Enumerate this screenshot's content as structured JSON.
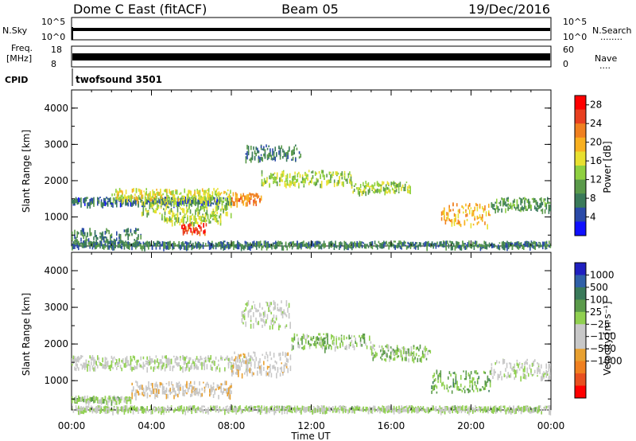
{
  "header": {
    "station": "Dome C East (fitACF)",
    "beam": "Beam 05",
    "date": "19/Dec/2016"
  },
  "panels": {
    "sky": {
      "left_label": "N.Sky",
      "right_label": "N.Search",
      "right_dots": "........",
      "left_ticks": [
        "10^5",
        "10^0"
      ],
      "right_ticks": [
        "10^5",
        "10^0"
      ]
    },
    "freq": {
      "left_label_1": "Freq.",
      "left_label_2": "[MHz]",
      "right_label": "Nave",
      "right_dots": "....",
      "left_ticks": [
        "18",
        "8"
      ],
      "right_ticks": [
        "60",
        "0"
      ]
    },
    "cpid": {
      "label": "CPID",
      "program": "twofsound 3501"
    }
  },
  "colors": {
    "power_scale": [
      "#1010ff",
      "#2a4aa8",
      "#3a7a5a",
      "#5a9a4a",
      "#8fd040",
      "#e8e030",
      "#f8b020",
      "#f08020",
      "#e84020",
      "#ff0000"
    ],
    "velocity_scale": [
      "#2020c0",
      "#3060a8",
      "#3a7a5a",
      "#5a9a4a",
      "#90d050",
      "#c8c8c8",
      "#c8c8c8",
      "#e8a030",
      "#f08020",
      "#e85020",
      "#ff0000"
    ]
  },
  "chart_data": [
    {
      "type": "heatmap",
      "quantity": "power",
      "ylabel": "Slant Range [km]",
      "ylim": [
        200,
        4500
      ],
      "yticks": [
        "1000",
        "2000",
        "3000",
        "4000"
      ],
      "xlabel": "",
      "xticks": [
        "00:00",
        "04:00",
        "08:00",
        "12:00",
        "16:00",
        "20:00",
        "00:00"
      ],
      "xlim_hours": [
        0,
        24
      ],
      "colorbar_label": "Power [dB]",
      "colorbar_ticks": [
        "4",
        "8",
        "12",
        "16",
        "20",
        "24",
        "28"
      ],
      "colorbar_range": [
        0,
        30
      ],
      "bands": [
        {
          "t": [
            0,
            8
          ],
          "r": [
            1380,
            1560
          ],
          "v": 6
        },
        {
          "t": [
            2,
            8
          ],
          "r": [
            1500,
            1800
          ],
          "v": 16
        },
        {
          "t": [
            3.5,
            8
          ],
          "r": [
            1100,
            1550
          ],
          "v": 14
        },
        {
          "t": [
            5.5,
            6.8
          ],
          "r": [
            600,
            900
          ],
          "v": 26
        },
        {
          "t": [
            4.5,
            7.5
          ],
          "r": [
            850,
            1100
          ],
          "v": 14
        },
        {
          "t": [
            8,
            9.5
          ],
          "r": [
            1400,
            1700
          ],
          "v": 22
        },
        {
          "t": [
            8.7,
            11.5
          ],
          "r": [
            2600,
            3000
          ],
          "v": 8
        },
        {
          "t": [
            9.5,
            14
          ],
          "r": [
            1900,
            2300
          ],
          "v": 14
        },
        {
          "t": [
            14,
            17
          ],
          "r": [
            1700,
            2000
          ],
          "v": 14
        },
        {
          "t": [
            18.5,
            21
          ],
          "r": [
            800,
            1400
          ],
          "v": 20
        },
        {
          "t": [
            21,
            24
          ],
          "r": [
            1200,
            1550
          ],
          "v": 10
        },
        {
          "t": [
            0,
            3.5
          ],
          "r": [
            300,
            700
          ],
          "v": 8
        },
        {
          "t": [
            0,
            24
          ],
          "r": [
            200,
            350
          ],
          "v": 8
        }
      ]
    },
    {
      "type": "heatmap",
      "quantity": "velocity",
      "ylabel": "Slant Range [km]",
      "ylim": [
        200,
        4500
      ],
      "yticks": [
        "1000",
        "2000",
        "3000",
        "4000"
      ],
      "xlabel": "Time UT",
      "xticks": [
        "00:00",
        "04:00",
        "08:00",
        "12:00",
        "16:00",
        "20:00",
        "00:00"
      ],
      "xlim_hours": [
        0,
        24
      ],
      "colorbar_label": "Velocity [m s⁻¹]",
      "colorbar_ticks": [
        "1000",
        "500",
        "100",
        "25",
        "−25",
        "−100",
        "−500",
        "−1000"
      ],
      "colorbar_range": [
        -1000,
        1000
      ],
      "bands": [
        {
          "t": [
            0,
            9
          ],
          "r": [
            1350,
            1700
          ],
          "v": 0
        },
        {
          "t": [
            3,
            8
          ],
          "r": [
            600,
            1000
          ],
          "v": -200
        },
        {
          "t": [
            8,
            11
          ],
          "r": [
            1200,
            1800
          ],
          "v": -150
        },
        {
          "t": [
            8.5,
            11
          ],
          "r": [
            2500,
            3200
          ],
          "v": 0
        },
        {
          "t": [
            11,
            15
          ],
          "r": [
            1900,
            2300
          ],
          "v": 200
        },
        {
          "t": [
            15,
            18
          ],
          "r": [
            1600,
            2000
          ],
          "v": 200
        },
        {
          "t": [
            18,
            21
          ],
          "r": [
            700,
            1300
          ],
          "v": 300
        },
        {
          "t": [
            21,
            24
          ],
          "r": [
            1100,
            1600
          ],
          "v": 0
        },
        {
          "t": [
            0,
            3
          ],
          "r": [
            450,
            600
          ],
          "v": 150
        },
        {
          "t": [
            0,
            24
          ],
          "r": [
            200,
            330
          ],
          "v": 80
        }
      ]
    }
  ]
}
